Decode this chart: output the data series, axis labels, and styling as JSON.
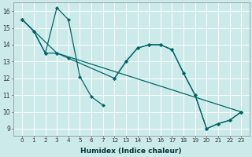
{
  "xlabel": "Humidex (Indice chaleur)",
  "bg_color": "#cceaea",
  "line_color": "#006666",
  "grid_color": "#ffffff",
  "yticks": [
    9,
    10,
    11,
    12,
    13,
    14,
    15,
    16
  ],
  "ylim": [
    8.6,
    16.5
  ],
  "xtick_labels": [
    "0",
    "1",
    "2",
    "3",
    "4",
    "5",
    "6",
    "7",
    "12",
    "13",
    "14",
    "15",
    "16",
    "17",
    "18",
    "19",
    "20",
    "21",
    "22",
    "23"
  ],
  "xtick_positions": [
    0,
    1,
    2,
    3,
    4,
    5,
    6,
    7,
    12,
    13,
    14,
    15,
    16,
    17,
    18,
    19,
    20,
    21,
    22,
    23
  ],
  "xlim": [
    -0.8,
    24.0
  ],
  "series": [
    {
      "x": [
        0,
        1,
        2,
        3,
        4,
        5,
        6,
        7
      ],
      "y": [
        15.5,
        14.8,
        13.5,
        16.2,
        15.5,
        12.1,
        10.9,
        10.4
      ]
    },
    {
      "x": [
        12,
        13,
        14,
        15,
        16,
        17,
        18,
        19,
        20,
        21,
        22,
        23
      ],
      "y": [
        12.0,
        13.0,
        13.8,
        14.0,
        14.0,
        13.7,
        12.3,
        11.0,
        9.0,
        9.3,
        9.5,
        10.0
      ]
    },
    {
      "x": [
        0,
        1,
        2,
        3,
        4,
        12,
        13,
        14,
        15,
        16,
        17,
        18,
        19,
        20,
        21,
        22,
        23
      ],
      "y": [
        15.5,
        14.8,
        13.5,
        13.5,
        13.2,
        12.0,
        13.0,
        13.8,
        14.0,
        14.0,
        13.7,
        12.3,
        11.0,
        9.0,
        9.3,
        9.5,
        10.0
      ]
    },
    {
      "x": [
        0,
        3,
        23
      ],
      "y": [
        15.5,
        13.5,
        10.0
      ]
    }
  ]
}
